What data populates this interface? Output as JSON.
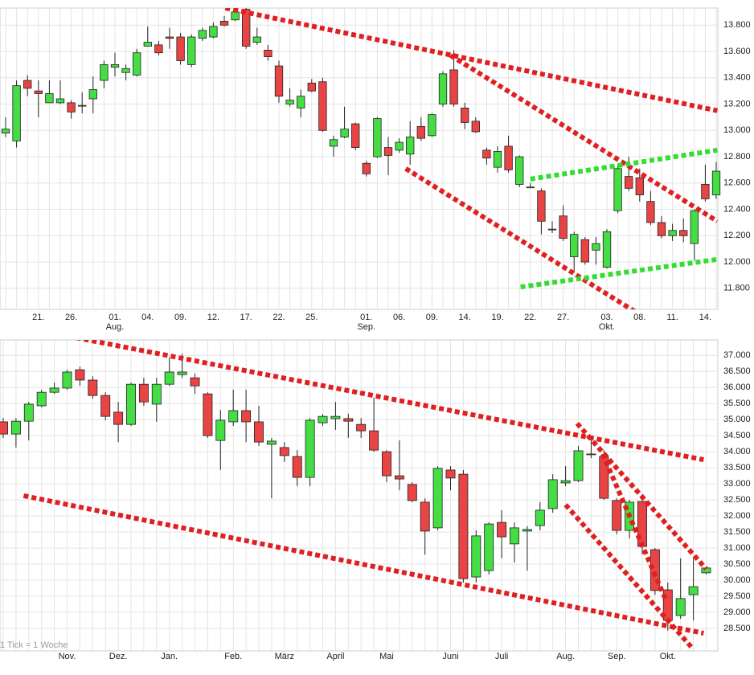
{
  "chart_data": [
    {
      "type": "candlestick",
      "categories": [
        null,
        null,
        null,
        "21.",
        null,
        null,
        "26.",
        null,
        null,
        null,
        "01.",
        null,
        null,
        "04.",
        null,
        null,
        "09.",
        null,
        null,
        "12.",
        null,
        null,
        "17.",
        null,
        null,
        "22.",
        null,
        null,
        "25.",
        null,
        null,
        null,
        null,
        "01.",
        null,
        null,
        "06.",
        null,
        null,
        "09.",
        null,
        null,
        "14.",
        null,
        null,
        "19.",
        null,
        null,
        "22.",
        null,
        null,
        "27.",
        null,
        null,
        null,
        "03.",
        null,
        null,
        "08.",
        null,
        null,
        "11.",
        null,
        null,
        "14.",
        null
      ],
      "open": [
        12.98,
        12.92,
        13.38,
        13.3,
        13.21,
        13.21,
        13.21,
        13.19,
        13.24,
        13.38,
        13.48,
        13.44,
        13.42,
        13.64,
        13.65,
        13.71,
        13.71,
        13.5,
        13.7,
        13.71,
        13.83,
        13.84,
        13.92,
        13.67,
        13.61,
        13.49,
        13.2,
        13.17,
        13.36,
        13.37,
        12.88,
        12.95,
        13.05,
        12.75,
        12.8,
        12.87,
        12.85,
        12.82,
        13.03,
        12.96,
        13.2,
        13.46,
        13.17,
        13.07,
        12.85,
        12.72,
        12.88,
        12.59,
        12.57,
        12.54,
        12.25,
        12.35,
        12.04,
        12.17,
        12.09,
        11.96,
        12.39,
        12.65,
        12.64,
        12.46,
        12.3,
        12.2,
        12.24,
        12.14,
        12.59,
        12.51
      ],
      "high": [
        13.1,
        13.38,
        13.42,
        13.38,
        13.38,
        13.38,
        13.23,
        13.29,
        13.41,
        13.53,
        13.59,
        13.5,
        13.62,
        13.79,
        13.68,
        13.78,
        13.74,
        13.73,
        13.78,
        13.82,
        13.87,
        13.93,
        13.93,
        13.78,
        13.65,
        13.53,
        13.32,
        13.31,
        13.39,
        13.4,
        12.96,
        13.18,
        13.06,
        12.77,
        13.1,
        12.95,
        12.94,
        13.07,
        13.1,
        13.13,
        13.45,
        13.61,
        13.21,
        13.1,
        12.87,
        12.88,
        12.96,
        12.81,
        12.6,
        12.56,
        12.31,
        12.43,
        12.23,
        12.19,
        12.19,
        12.25,
        12.74,
        12.8,
        12.71,
        12.54,
        12.35,
        12.29,
        12.33,
        12.4,
        12.74,
        12.76
      ],
      "low": [
        12.95,
        12.87,
        13.26,
        13.1,
        13.21,
        13.2,
        13.09,
        13.13,
        13.13,
        13.32,
        13.41,
        13.38,
        13.41,
        13.64,
        13.57,
        13.62,
        13.5,
        13.48,
        13.68,
        13.7,
        13.79,
        13.83,
        13.62,
        13.65,
        13.53,
        13.21,
        13.18,
        13.1,
        13.29,
        12.99,
        12.8,
        12.94,
        12.85,
        12.65,
        12.79,
        12.66,
        12.83,
        12.74,
        12.92,
        12.95,
        13.18,
        13.18,
        13.01,
        12.98,
        12.74,
        12.68,
        12.68,
        12.57,
        12.56,
        12.21,
        12.22,
        12.16,
        11.92,
        11.98,
        11.98,
        11.95,
        12.37,
        12.54,
        12.46,
        12.28,
        12.18,
        12.16,
        12.15,
        12.01,
        12.46,
        12.48
      ],
      "close": [
        13.01,
        13.34,
        13.32,
        13.28,
        13.28,
        13.24,
        13.14,
        13.19,
        13.31,
        13.5,
        13.5,
        13.47,
        13.59,
        13.67,
        13.59,
        13.7,
        13.53,
        13.71,
        13.76,
        13.79,
        13.8,
        13.9,
        13.64,
        13.71,
        13.56,
        13.26,
        13.23,
        13.26,
        13.3,
        13.0,
        12.93,
        13.01,
        12.87,
        12.67,
        13.09,
        12.81,
        12.91,
        12.95,
        12.94,
        13.12,
        13.43,
        13.2,
        13.06,
        12.99,
        12.79,
        12.84,
        12.7,
        12.8,
        12.57,
        12.31,
        12.25,
        12.18,
        12.21,
        12.0,
        12.14,
        12.23,
        12.71,
        12.56,
        12.51,
        12.3,
        12.2,
        12.24,
        12.2,
        12.39,
        12.48,
        12.69
      ],
      "up_color": "#44dd44",
      "down_color": "#e84444",
      "ylim": [
        11.64,
        13.93
      ],
      "yticks": [
        {
          "value": 11.8,
          "label": "11.800"
        },
        {
          "value": 12.0,
          "label": "12.000"
        },
        {
          "value": 12.2,
          "label": "12.200"
        },
        {
          "value": 12.4,
          "label": "12.400"
        },
        {
          "value": 12.6,
          "label": "12.600"
        },
        {
          "value": 12.8,
          "label": "12.800"
        },
        {
          "value": 13.0,
          "label": "13.000"
        },
        {
          "value": 13.2,
          "label": "13.200"
        },
        {
          "value": 13.4,
          "label": "13.400"
        },
        {
          "value": 13.6,
          "label": "13.600"
        },
        {
          "value": 13.8,
          "label": "13.800"
        }
      ],
      "grid": true,
      "month_labels": [
        {
          "at": 10,
          "label": "Aug."
        },
        {
          "at": 33,
          "label": "Sep."
        },
        {
          "at": 55,
          "label": "Okt."
        }
      ],
      "trend_lines": [
        {
          "color": "#e02020",
          "x": [
            20.1,
            65.1
          ],
          "y": [
            13.93,
            13.15
          ]
        },
        {
          "color": "#e02020",
          "x": [
            40.7,
            65.1
          ],
          "y": [
            13.57,
            12.31
          ]
        },
        {
          "color": "#e02020",
          "x": [
            36.6,
            61.3
          ],
          "y": [
            12.71,
            11.43
          ]
        },
        {
          "color": "#33dd33",
          "x": [
            48,
            65.1
          ],
          "y": [
            12.63,
            12.85
          ]
        },
        {
          "color": "#33dd33",
          "x": [
            47.1,
            65.1
          ],
          "y": [
            11.81,
            12.02
          ]
        }
      ]
    },
    {
      "type": "candlestick",
      "categories": [
        null,
        null,
        null,
        null,
        null,
        null,
        null,
        null,
        null,
        null,
        null,
        null,
        null,
        null,
        null,
        null,
        null,
        null,
        null,
        null,
        null,
        null,
        null,
        null,
        null,
        null,
        null,
        null,
        null,
        null,
        null,
        null,
        null,
        null,
        null,
        null,
        null,
        null,
        null,
        null,
        null,
        null,
        null,
        null,
        null,
        null,
        null,
        null,
        null,
        null,
        null,
        null,
        null,
        null,
        null,
        null
      ],
      "open": [
        34.93,
        34.55,
        34.95,
        35.43,
        35.85,
        35.98,
        36.55,
        36.23,
        35.75,
        35.23,
        34.85,
        36.1,
        35.48,
        36.1,
        36.4,
        36.3,
        35.8,
        34.35,
        34.93,
        35.28,
        34.93,
        34.23,
        34.13,
        33.85,
        33.2,
        34.9,
        35.03,
        35.03,
        34.85,
        34.65,
        34.0,
        33.25,
        32.98,
        32.43,
        31.63,
        33.43,
        33.3,
        30.1,
        30.3,
        31.8,
        31.13,
        31.53,
        31.7,
        32.23,
        33.03,
        33.1,
        33.93,
        33.85,
        32.48,
        31.55,
        32.45,
        30.95,
        29.7,
        28.9,
        29.55,
        30.23
      ],
      "high": [
        35.05,
        35.05,
        35.55,
        35.93,
        36.15,
        36.55,
        36.65,
        36.35,
        35.85,
        35.55,
        36.15,
        36.3,
        36.3,
        36.93,
        37.05,
        36.43,
        35.85,
        35.3,
        35.93,
        35.93,
        35.43,
        34.43,
        34.3,
        34.05,
        35.05,
        35.18,
        35.55,
        35.18,
        35.05,
        35.68,
        34.05,
        34.35,
        33.05,
        32.55,
        33.55,
        33.55,
        33.43,
        31.55,
        31.8,
        32.18,
        31.8,
        31.68,
        32.43,
        33.3,
        33.55,
        34.18,
        34.43,
        34.05,
        32.55,
        32.5,
        32.68,
        31.0,
        29.93,
        30.68,
        30.68,
        30.43
      ],
      "low": [
        34.43,
        34.13,
        34.35,
        35.38,
        35.8,
        35.93,
        36.05,
        35.65,
        34.98,
        34.3,
        34.8,
        35.43,
        34.93,
        36.05,
        36.3,
        35.8,
        34.43,
        33.43,
        34.8,
        34.3,
        34.18,
        32.55,
        33.68,
        32.93,
        32.93,
        34.8,
        34.68,
        34.43,
        34.43,
        34.0,
        33.05,
        32.8,
        32.43,
        30.8,
        31.55,
        32.8,
        29.93,
        29.93,
        30.18,
        30.68,
        30.55,
        30.3,
        31.55,
        32.1,
        32.93,
        33.05,
        33.8,
        32.5,
        31.43,
        31.3,
        30.8,
        29.55,
        28.43,
        28.8,
        28.75,
        30.18
      ],
      "close": [
        34.55,
        34.95,
        35.48,
        35.85,
        35.98,
        36.48,
        36.23,
        35.75,
        35.1,
        34.85,
        36.1,
        35.55,
        36.1,
        36.48,
        36.48,
        36.05,
        34.5,
        34.98,
        35.28,
        34.93,
        34.3,
        34.33,
        33.88,
        33.2,
        34.98,
        35.1,
        35.1,
        34.95,
        34.65,
        34.05,
        33.25,
        33.15,
        32.48,
        31.53,
        33.48,
        33.18,
        30.05,
        31.38,
        31.75,
        31.35,
        31.63,
        31.58,
        32.18,
        33.13,
        33.1,
        34.03,
        33.93,
        32.55,
        31.55,
        32.43,
        31.05,
        29.68,
        28.75,
        29.43,
        29.8,
        30.38
      ],
      "up_color": "#44dd44",
      "down_color": "#e84444",
      "ylim": [
        27.8,
        37.48
      ],
      "yticks": [
        {
          "value": 28.5,
          "label": "28.500"
        },
        {
          "value": 29.0,
          "label": "29.000"
        },
        {
          "value": 29.5,
          "label": "29.500"
        },
        {
          "value": 30.0,
          "label": "30.000"
        },
        {
          "value": 30.5,
          "label": "30.500"
        },
        {
          "value": 31.0,
          "label": "31.000"
        },
        {
          "value": 31.5,
          "label": "31.500"
        },
        {
          "value": 32.0,
          "label": "32.000"
        },
        {
          "value": 32.5,
          "label": "32.500"
        },
        {
          "value": 33.0,
          "label": "33.000"
        },
        {
          "value": 33.5,
          "label": "33.500"
        },
        {
          "value": 34.0,
          "label": "34.000"
        },
        {
          "value": 34.5,
          "label": "34.500"
        },
        {
          "value": 35.0,
          "label": "35.000"
        },
        {
          "value": 35.5,
          "label": "35.500"
        },
        {
          "value": 36.0,
          "label": "36.000"
        },
        {
          "value": 36.5,
          "label": "36.500"
        },
        {
          "value": 37.0,
          "label": "37.000"
        }
      ],
      "grid": true,
      "month_labels": [
        {
          "at": 5,
          "label": "Nov."
        },
        {
          "at": 9,
          "label": "Dez."
        },
        {
          "at": 13,
          "label": "Jan."
        },
        {
          "at": 18,
          "label": "Feb."
        },
        {
          "at": 22,
          "label": "März"
        },
        {
          "at": 26,
          "label": "April"
        },
        {
          "at": 30,
          "label": "Mai"
        },
        {
          "at": 35,
          "label": "Juni"
        },
        {
          "at": 39,
          "label": "Juli"
        },
        {
          "at": 44,
          "label": "Aug."
        },
        {
          "at": 48,
          "label": "Sep."
        },
        {
          "at": 52,
          "label": "Okt."
        }
      ],
      "trend_lines": [
        {
          "color": "#e02020",
          "x": [
            5.7,
            54.8
          ],
          "y": [
            37.55,
            33.75
          ]
        },
        {
          "color": "#e02020",
          "x": [
            1.6,
            54.8
          ],
          "y": [
            32.63,
            28.35
          ]
        },
        {
          "color": "#e02020",
          "x": [
            44.9,
            55
          ],
          "y": [
            34.88,
            30.35
          ]
        },
        {
          "color": "#e02020",
          "x": [
            46.9,
            51.8
          ],
          "y": [
            33.93,
            29.43
          ]
        },
        {
          "color": "#e02020",
          "x": [
            44,
            54
          ],
          "y": [
            32.35,
            27.85
          ]
        }
      ],
      "note": "1 Tick = 1 Woche"
    }
  ]
}
